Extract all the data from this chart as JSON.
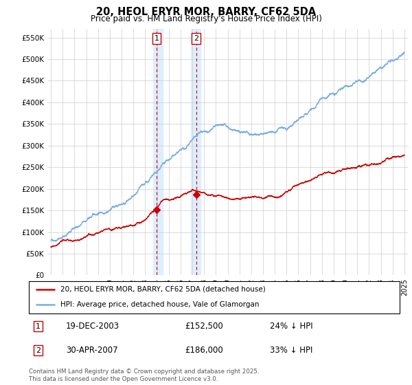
{
  "title": "20, HEOL ERYR MOR, BARRY, CF62 5DA",
  "subtitle": "Price paid vs. HM Land Registry's House Price Index (HPI)",
  "ylabel_ticks": [
    "£0",
    "£50K",
    "£100K",
    "£150K",
    "£200K",
    "£250K",
    "£300K",
    "£350K",
    "£400K",
    "£450K",
    "£500K",
    "£550K"
  ],
  "ytick_values": [
    0,
    50000,
    100000,
    150000,
    200000,
    250000,
    300000,
    350000,
    400000,
    450000,
    500000,
    550000
  ],
  "ylim": [
    0,
    570000
  ],
  "xlim_start": 1994.7,
  "xlim_end": 2025.3,
  "purchase1_date": "19-DEC-2003",
  "purchase1_price": 152500,
  "purchase1_hpi_diff": "24% ↓ HPI",
  "purchase1_x": 2003.97,
  "purchase2_date": "30-APR-2007",
  "purchase2_price": 186000,
  "purchase2_hpi_diff": "33% ↓ HPI",
  "purchase2_x": 2007.33,
  "legend_line1": "20, HEOL ERYR MOR, BARRY, CF62 5DA (detached house)",
  "legend_line2": "HPI: Average price, detached house, Vale of Glamorgan",
  "footer": "Contains HM Land Registry data © Crown copyright and database right 2025.\nThis data is licensed under the Open Government Licence v3.0.",
  "line_property_color": "#cc0000",
  "line_hpi_color": "#7aade0",
  "shade_color": "#ddeeff",
  "background_color": "#ffffff",
  "grid_color": "#cccccc"
}
